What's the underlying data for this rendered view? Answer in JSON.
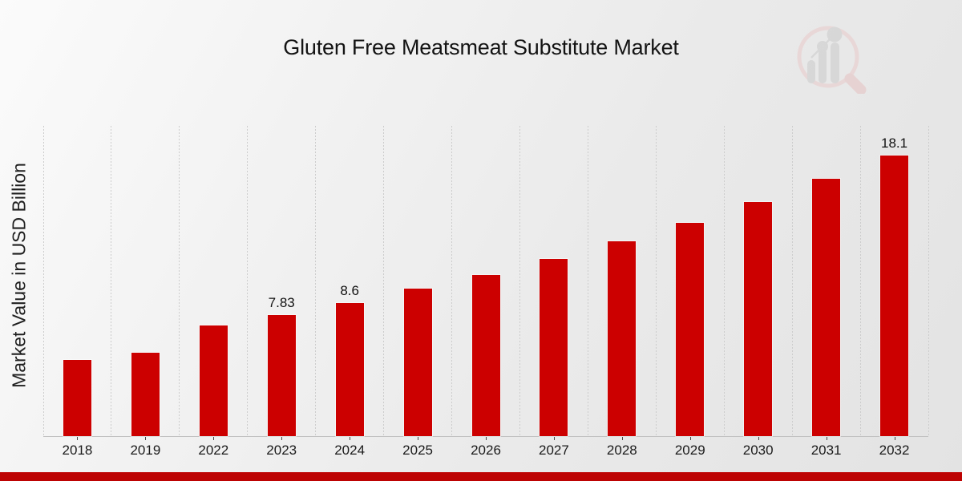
{
  "page": {
    "title": "Gluten Free Meatsmeat Substitute Market"
  },
  "branding": {
    "logo_name": "market-research-future-magnifier-bar-chart-logo",
    "accent_red": "#cc0000",
    "bottom_strip_color": "#bd0303"
  },
  "chart_data": {
    "type": "bar",
    "title": "Gluten Free Meatsmeat Substitute Market",
    "xlabel": "",
    "ylabel": "Market Value in USD Billion",
    "categories": [
      "2018",
      "2019",
      "2022",
      "2023",
      "2024",
      "2025",
      "2026",
      "2027",
      "2028",
      "2029",
      "2030",
      "2031",
      "2032"
    ],
    "values": [
      4.93,
      5.39,
      7.16,
      7.83,
      8.6,
      9.49,
      10.37,
      11.41,
      12.55,
      13.74,
      15.09,
      16.59,
      18.1
    ],
    "data_labels": {
      "2023": "7.83",
      "2024": "8.6",
      "2032": "18.1"
    },
    "ylim": [
      0,
      20
    ],
    "bar_color": "#cc0000",
    "grid": "vertical-dashed-lines",
    "legend_position": "none"
  }
}
